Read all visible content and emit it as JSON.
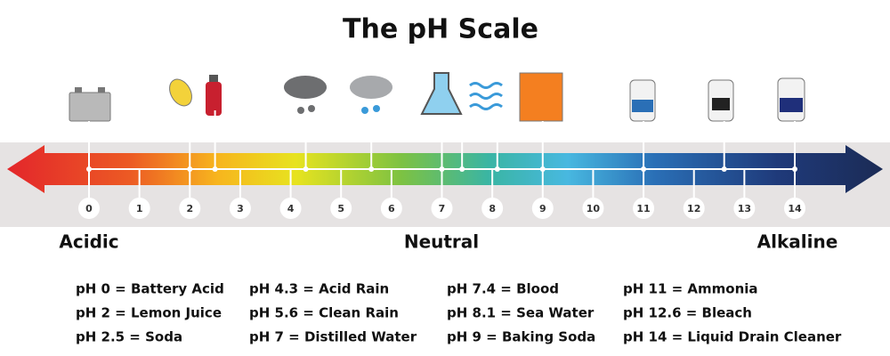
{
  "title": "The pH Scale",
  "scale": {
    "ticks": [
      0,
      1,
      2,
      3,
      4,
      5,
      6,
      7,
      8,
      9,
      10,
      11,
      12,
      13,
      14
    ],
    "min": 0,
    "max": 14
  },
  "zones": {
    "acidic": "Acidic",
    "neutral": "Neutral",
    "alkaline": "Alkaline"
  },
  "columns": [
    [
      {
        "label": "pH 0 = Battery Acid",
        "ph": 0
      },
      {
        "label": "pH 2 = Lemon Juice",
        "ph": 2
      },
      {
        "label": "pH 2.5 =  Soda",
        "ph": 2.5
      }
    ],
    [
      {
        "label": "pH 4.3 = Acid Rain",
        "ph": 4.3
      },
      {
        "label": "pH 5.6 = Clean Rain",
        "ph": 5.6
      },
      {
        "label": "pH 7 = Distilled Water",
        "ph": 7,
        "color": "#2f7fc1"
      }
    ],
    [
      {
        "label": "pH 7.4 = Blood",
        "ph": 7.4
      },
      {
        "label": "pH 8.1 =  Sea Water",
        "ph": 8.1
      },
      {
        "label": "pH 9 = Baking Soda",
        "ph": 9
      }
    ],
    [
      {
        "label": "pH 11 = Ammonia",
        "ph": 11
      },
      {
        "label": "pH 12.6 = Bleach",
        "ph": 12.6
      },
      {
        "label": "pH 14 = Liquid Drain Cleaner",
        "ph": 14
      }
    ]
  ]
}
